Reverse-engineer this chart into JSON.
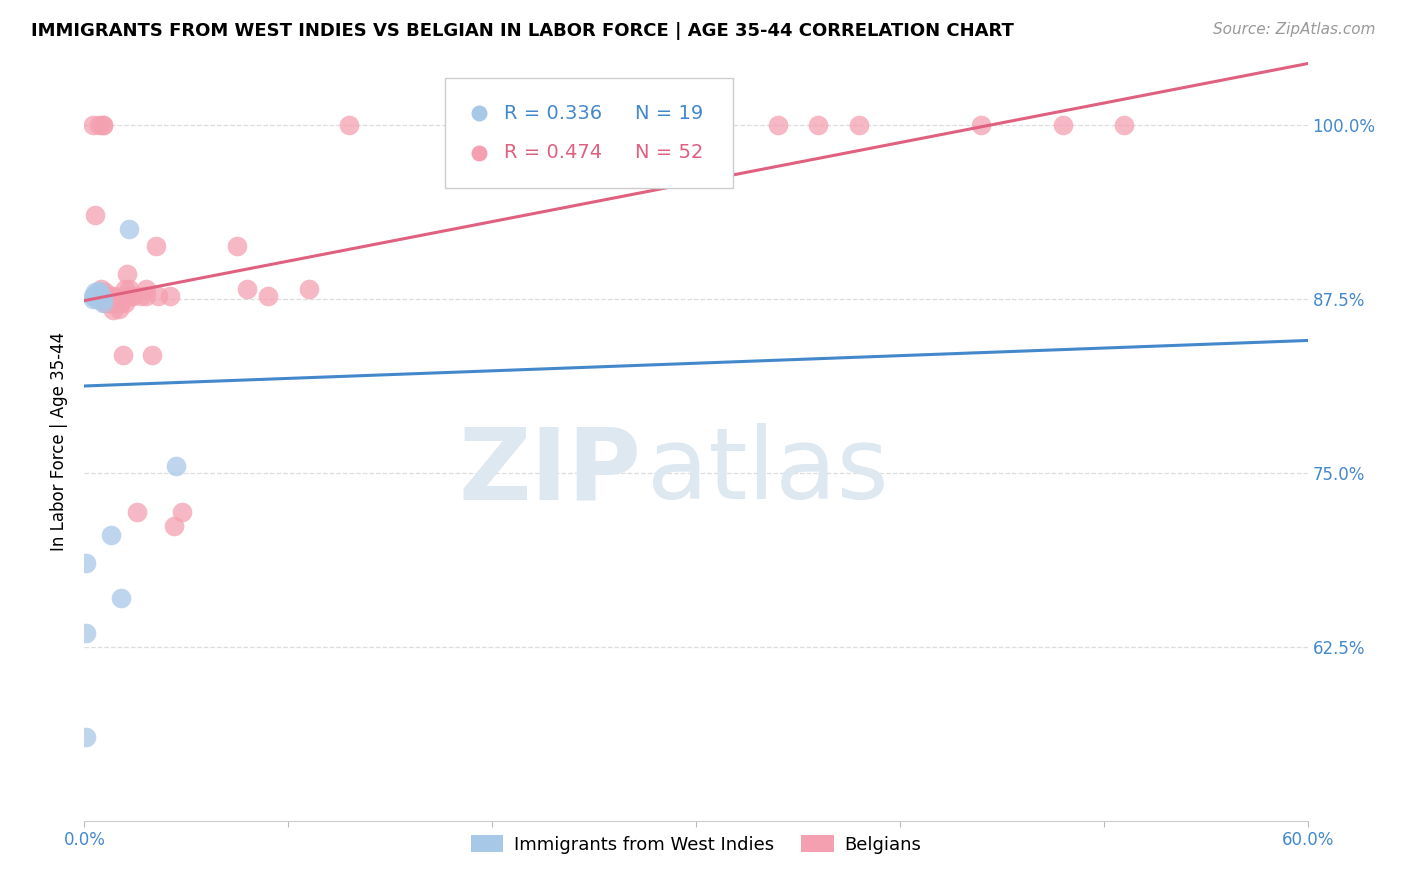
{
  "title": "IMMIGRANTS FROM WEST INDIES VS BELGIAN IN LABOR FORCE | AGE 35-44 CORRELATION CHART",
  "source": "Source: ZipAtlas.com",
  "ylabel": "In Labor Force | Age 35-44",
  "xlim": [
    0.0,
    0.6
  ],
  "ylim": [
    0.5,
    1.045
  ],
  "legend_blue_r": "R = 0.336",
  "legend_blue_n": "N = 19",
  "legend_pink_r": "R = 0.474",
  "legend_pink_n": "N = 52",
  "blue_color": "#a8c8e8",
  "pink_color": "#f4a0b0",
  "blue_line_color": "#4488cc",
  "pink_line_color": "#e06080",
  "watermark_zip": "ZIP",
  "watermark_atlas": "atlas",
  "watermark_color": "#dde8f0",
  "blue_x": [
    0.001,
    0.001,
    0.001,
    0.004,
    0.004,
    0.005,
    0.005,
    0.006,
    0.006,
    0.007,
    0.007,
    0.008,
    0.008,
    0.009,
    0.009,
    0.013,
    0.018,
    0.022,
    0.045
  ],
  "blue_y": [
    0.56,
    0.635,
    0.685,
    0.875,
    0.877,
    0.878,
    0.88,
    0.875,
    0.877,
    0.879,
    0.881,
    0.875,
    0.877,
    0.872,
    0.875,
    0.705,
    0.66,
    0.925,
    0.755
  ],
  "pink_x": [
    0.004,
    0.005,
    0.007,
    0.008,
    0.009,
    0.009,
    0.009,
    0.01,
    0.01,
    0.011,
    0.011,
    0.012,
    0.012,
    0.013,
    0.013,
    0.014,
    0.014,
    0.015,
    0.015,
    0.016,
    0.017,
    0.017,
    0.018,
    0.019,
    0.02,
    0.02,
    0.02,
    0.021,
    0.022,
    0.023,
    0.024,
    0.026,
    0.028,
    0.03,
    0.03,
    0.033,
    0.035,
    0.036,
    0.042,
    0.044,
    0.048,
    0.075,
    0.08,
    0.09,
    0.11,
    0.13,
    0.34,
    0.36,
    0.38,
    0.44,
    0.48,
    0.51
  ],
  "pink_y": [
    1.0,
    0.935,
    1.0,
    0.882,
    1.0,
    1.0,
    0.877,
    0.872,
    0.88,
    0.872,
    0.877,
    0.872,
    0.877,
    0.872,
    0.877,
    0.872,
    0.867,
    0.872,
    0.877,
    0.872,
    0.868,
    0.876,
    0.872,
    0.835,
    0.882,
    0.877,
    0.872,
    0.893,
    0.882,
    0.877,
    0.877,
    0.722,
    0.877,
    0.882,
    0.877,
    0.835,
    0.913,
    0.877,
    0.877,
    0.712,
    0.722,
    0.913,
    0.882,
    0.877,
    0.882,
    1.0,
    1.0,
    1.0,
    1.0,
    1.0,
    1.0,
    1.0
  ],
  "ytick_vals": [
    0.625,
    0.75,
    0.875,
    1.0
  ],
  "ytick_labels": [
    "62.5%",
    "75.0%",
    "87.5%",
    "100.0%"
  ],
  "xtick_vals": [
    0.0,
    0.1,
    0.2,
    0.3,
    0.4,
    0.5,
    0.6
  ],
  "xtick_labels": [
    "0.0%",
    "",
    "",
    "",
    "",
    "",
    "60.0%"
  ],
  "grid_color": "#dddddd",
  "title_fontsize": 13,
  "source_fontsize": 11,
  "ylabel_fontsize": 12,
  "tick_fontsize": 12,
  "legend_fontsize": 13,
  "inner_legend_fontsize": 14
}
